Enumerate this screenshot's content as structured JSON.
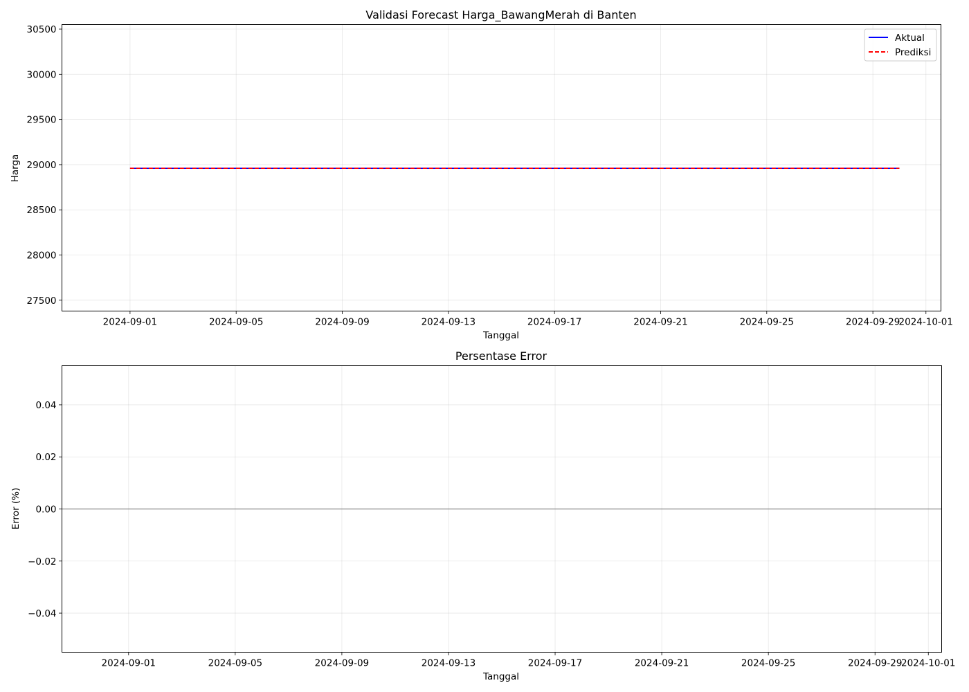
{
  "chart_data": [
    {
      "type": "line",
      "title": "Validasi Forecast Harga_BawangMerah di Banten",
      "xlabel": "Tanggal",
      "ylabel": "Harga",
      "ylim": [
        27380,
        30550
      ],
      "xlim": [
        "2024-08-29T10:24",
        "2024-10-01T13:36"
      ],
      "x_ticks": [
        "2024-09-01",
        "2024-09-05",
        "2024-09-09",
        "2024-09-13",
        "2024-09-17",
        "2024-09-21",
        "2024-09-25",
        "2024-09-29",
        "2024-10-01"
      ],
      "y_ticks": [
        27500,
        28000,
        28500,
        29000,
        29500,
        30000,
        30500
      ],
      "grid": true,
      "legend": {
        "position": "upper right"
      },
      "series": [
        {
          "name": "Aktual",
          "color": "#0000ff",
          "style": "solid",
          "x": [
            "2024-09-01",
            "2024-09-30"
          ],
          "y": [
            28960,
            28960
          ]
        },
        {
          "name": "Prediksi",
          "color": "#ff0000",
          "style": "dashed",
          "x": [
            "2024-09-01",
            "2024-09-30"
          ],
          "y": [
            28960,
            28960
          ]
        }
      ]
    },
    {
      "type": "line",
      "title": "Persentase Error",
      "xlabel": "Tanggal",
      "ylabel": "Error (%)",
      "ylim": [
        -0.055,
        0.055
      ],
      "xlim": [
        "2024-08-29T12:00",
        "2024-10-01T12:00"
      ],
      "x_ticks": [
        "2024-09-01",
        "2024-09-05",
        "2024-09-09",
        "2024-09-13",
        "2024-09-17",
        "2024-09-21",
        "2024-09-25",
        "2024-09-29",
        "2024-10-01"
      ],
      "y_ticks": [
        -0.04,
        -0.02,
        0.0,
        0.02,
        0.04
      ],
      "y_tick_labels": [
        "−0.04",
        "−0.02",
        "0.00",
        "0.02",
        "0.04"
      ],
      "grid": true,
      "reference_line": {
        "y": 0,
        "color": "#808080"
      }
    }
  ]
}
